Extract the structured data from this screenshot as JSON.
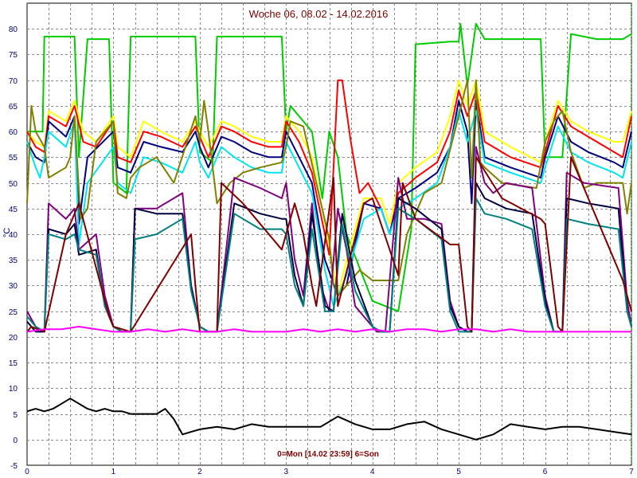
{
  "chart_data": {
    "type": "line",
    "title": "Woche 06, 08.02 - 14.02.2016",
    "xlabel": "0=Mon [14.02 23:59] 6=Son",
    "ylabel": "°C",
    "xlim": [
      0,
      7
    ],
    "ylim": [
      -5,
      85
    ],
    "x_ticks": [
      0,
      1,
      2,
      3,
      4,
      5,
      6,
      7
    ],
    "y_ticks": [
      -5,
      0,
      5,
      10,
      15,
      20,
      25,
      30,
      35,
      40,
      45,
      50,
      55,
      60,
      65,
      70,
      75,
      80
    ],
    "grid": true,
    "colors": {
      "title": "#800000",
      "axis_text": "#000080",
      "grid": "#888888",
      "axis": "#000000"
    },
    "series": [
      {
        "color": "#00cc00",
        "x": [
          0,
          0.18,
          0.2,
          0.55,
          0.6,
          0.7,
          0.95,
          1.0,
          1.15,
          1.2,
          1.95,
          2.0,
          2.15,
          2.2,
          2.95,
          3.0,
          3.05,
          3.3,
          3.42,
          3.5,
          3.6,
          3.7,
          4.0,
          4.3,
          4.45,
          4.5,
          4.9,
          5.0,
          5.02,
          5.1,
          5.2,
          5.3,
          5.6,
          5.95,
          6.0,
          6.2,
          6.3,
          6.6,
          6.9,
          7.0
        ],
        "y": [
          60,
          60,
          78.5,
          78.5,
          55,
          78,
          78,
          50,
          48,
          78.5,
          78.5,
          56,
          54,
          78.5,
          78.5,
          60,
          65,
          60,
          47,
          60,
          55,
          40,
          27,
          25,
          41,
          77,
          77.5,
          77.5,
          81,
          69,
          81,
          78,
          78,
          78,
          55,
          55,
          79,
          78,
          78,
          79
        ]
      },
      {
        "color": "#ffff00",
        "x": [
          0,
          0.1,
          0.2,
          0.25,
          0.45,
          0.55,
          0.65,
          0.8,
          1.0,
          1.05,
          1.2,
          1.35,
          1.55,
          1.8,
          1.95,
          2.0,
          2.1,
          2.25,
          2.4,
          2.6,
          2.8,
          2.95,
          3.0,
          3.15,
          3.3,
          3.5,
          3.6,
          3.7,
          3.9,
          4.1,
          4.2,
          4.3,
          4.5,
          4.75,
          4.9,
          5.0,
          5.1,
          5.2,
          5.3,
          5.6,
          5.95,
          6.0,
          6.15,
          6.3,
          6.5,
          6.8,
          6.9,
          7.0
        ],
        "y": [
          60,
          58,
          57,
          64,
          62,
          66,
          60,
          58,
          63,
          57,
          55,
          62,
          60,
          58,
          62,
          60,
          57,
          62,
          61,
          59,
          58,
          58,
          63,
          60,
          55,
          38,
          28,
          35,
          47,
          47,
          42,
          50,
          53,
          56,
          63,
          70,
          65,
          70,
          60,
          57,
          54,
          58,
          66,
          62,
          60,
          58,
          58,
          64
        ]
      },
      {
        "color": "#ff0000",
        "x": [
          0,
          0.1,
          0.2,
          0.25,
          0.45,
          0.55,
          0.65,
          0.8,
          1.0,
          1.05,
          1.2,
          1.35,
          1.55,
          1.8,
          1.95,
          2.0,
          2.1,
          2.25,
          2.4,
          2.6,
          2.8,
          2.95,
          3.0,
          3.15,
          3.3,
          3.5,
          3.6,
          3.65,
          3.75,
          3.85,
          3.95,
          4.1,
          4.2,
          4.3,
          4.5,
          4.75,
          4.9,
          5.0,
          5.1,
          5.2,
          5.3,
          5.6,
          5.95,
          6.0,
          6.15,
          6.3,
          6.5,
          6.8,
          6.9,
          7.0
        ],
        "y": [
          60,
          57,
          56,
          63,
          61,
          65,
          58,
          57,
          62,
          55,
          54,
          60,
          59,
          57,
          61,
          59,
          55,
          61,
          60,
          58,
          57,
          57,
          62,
          58,
          52,
          36,
          70,
          70,
          58,
          48,
          50,
          45,
          40,
          48,
          51,
          54,
          60,
          68,
          63,
          68,
          58,
          55,
          53,
          56,
          65,
          61,
          59,
          56,
          55,
          63
        ]
      },
      {
        "color": "#000080",
        "x": [
          0,
          0.1,
          0.2,
          0.25,
          0.45,
          0.55,
          0.6,
          0.7,
          1.0,
          1.05,
          1.2,
          1.35,
          1.55,
          1.8,
          1.95,
          2.0,
          2.1,
          2.25,
          2.4,
          2.6,
          2.8,
          2.95,
          3.0,
          3.15,
          3.3,
          3.45,
          3.6,
          3.7,
          3.9,
          4.1,
          4.2,
          4.3,
          4.5,
          4.75,
          4.9,
          5.0,
          5.1,
          5.15,
          5.2,
          5.3,
          5.6,
          5.95,
          6.0,
          6.15,
          6.3,
          6.5,
          6.8,
          6.9,
          7.0
        ],
        "y": [
          58,
          55,
          54,
          62,
          59,
          63,
          42,
          55,
          60,
          53,
          52,
          58,
          57,
          56,
          60,
          57,
          53,
          59,
          58,
          56,
          55,
          55,
          60,
          55,
          50,
          35,
          28,
          30,
          46,
          45,
          40,
          47,
          49,
          52,
          57,
          66,
          60,
          46,
          66,
          55,
          53,
          51,
          55,
          63,
          58,
          56,
          54,
          53,
          60
        ]
      },
      {
        "color": "#00e5ee",
        "x": [
          0,
          0.1,
          0.15,
          0.2,
          0.25,
          0.45,
          0.55,
          0.6,
          0.7,
          1.0,
          1.05,
          1.2,
          1.35,
          1.55,
          1.8,
          1.95,
          2.0,
          2.1,
          2.25,
          2.4,
          2.6,
          2.8,
          2.95,
          3.0,
          3.15,
          3.3,
          3.45,
          3.55,
          3.7,
          3.9,
          4.1,
          4.2,
          4.3,
          4.5,
          4.75,
          4.9,
          5.0,
          5.1,
          5.2,
          5.3,
          5.6,
          5.95,
          6.0,
          6.15,
          6.3,
          6.5,
          6.8,
          6.9,
          7.0
        ],
        "y": [
          58,
          53,
          51,
          55,
          60,
          57,
          62,
          38,
          50,
          57,
          50,
          48,
          55,
          54,
          52,
          58,
          54,
          51,
          57,
          55,
          53,
          52,
          52,
          58,
          53,
          48,
          33,
          26,
          32,
          43,
          45,
          40,
          45,
          47,
          50,
          57,
          64,
          58,
          64,
          54,
          52,
          50,
          53,
          61,
          56,
          54,
          52,
          51,
          58
        ]
      },
      {
        "color": "#808000",
        "x": [
          0,
          0.05,
          0.1,
          0.2,
          0.25,
          0.45,
          0.5,
          0.55,
          0.62,
          0.7,
          0.8,
          1.0,
          1.05,
          1.15,
          1.2,
          1.3,
          1.5,
          1.7,
          1.95,
          2.0,
          2.05,
          2.1,
          2.2,
          2.35,
          2.5,
          2.7,
          2.95,
          3.0,
          3.05,
          3.2,
          3.35,
          3.5,
          3.55,
          3.6,
          3.7,
          3.85,
          4.0,
          4.3,
          4.4,
          4.45,
          4.6,
          4.8,
          5.0,
          5.1,
          5.15,
          5.2,
          5.25,
          5.3,
          5.5,
          5.9,
          6.0,
          6.1,
          6.2,
          6.3,
          6.45,
          6.6,
          6.9,
          6.95,
          7.0
        ],
        "y": [
          46,
          65,
          60,
          57,
          51,
          53,
          55,
          63,
          43,
          45,
          58,
          62,
          48,
          47,
          51,
          53,
          55,
          50,
          63,
          58,
          66,
          60,
          46,
          50,
          52,
          53,
          54,
          57,
          62,
          61,
          50,
          39,
          30,
          28,
          30,
          33,
          31,
          31,
          40,
          42,
          48,
          50,
          63,
          70,
          51,
          70,
          54,
          53,
          50,
          49,
          58,
          62,
          64,
          56,
          49,
          50,
          50,
          44,
          50
        ]
      },
      {
        "color": "#800080",
        "x": [
          0,
          0.1,
          0.2,
          0.25,
          0.45,
          0.55,
          0.6,
          0.8,
          0.9,
          1.0,
          1.1,
          1.2,
          1.25,
          1.5,
          1.8,
          1.9,
          2.0,
          2.1,
          2.2,
          2.4,
          2.7,
          2.95,
          3.0,
          3.1,
          3.2,
          3.3,
          3.4,
          3.5,
          3.6,
          3.7,
          3.8,
          4.0,
          4.05,
          4.15,
          4.3,
          4.4,
          4.6,
          4.8,
          4.9,
          5.0,
          5.1,
          5.15,
          5.2,
          5.3,
          5.4,
          5.55,
          5.85,
          6.0,
          6.1,
          6.2,
          6.25,
          6.45,
          6.85,
          6.95,
          7.0
        ],
        "y": [
          25,
          22,
          21,
          46,
          43,
          45,
          37,
          40,
          28,
          22,
          21,
          21,
          45,
          45,
          48,
          30,
          22,
          21,
          21,
          51,
          49,
          47,
          50,
          35,
          28,
          46,
          30,
          25,
          45,
          37,
          26,
          22,
          21,
          21,
          51,
          43,
          43,
          42,
          27,
          22,
          21,
          21,
          57,
          50,
          48,
          50,
          49,
          28,
          21,
          21,
          52,
          50,
          49,
          27,
          22
        ]
      },
      {
        "color": "#000040",
        "x": [
          0,
          0.1,
          0.2,
          0.25,
          0.45,
          0.55,
          0.6,
          0.8,
          0.9,
          1.0,
          1.1,
          1.2,
          1.25,
          1.5,
          1.8,
          1.9,
          2.0,
          2.1,
          2.2,
          2.4,
          2.7,
          2.95,
          3.0,
          3.1,
          3.2,
          3.3,
          3.45,
          3.55,
          3.65,
          3.8,
          4.0,
          4.1,
          4.2,
          4.3,
          4.5,
          4.8,
          4.9,
          5.0,
          5.1,
          5.15,
          5.2,
          5.3,
          5.55,
          5.85,
          6.0,
          6.1,
          6.2,
          6.25,
          6.5,
          6.85,
          6.95,
          7.0
        ],
        "y": [
          23,
          21,
          21,
          41,
          40,
          42,
          36,
          37,
          26,
          22,
          21,
          21,
          45,
          44,
          44,
          30,
          22,
          21,
          21,
          46,
          44,
          43,
          43,
          32,
          26,
          44,
          26,
          25,
          44,
          31,
          22,
          21,
          21,
          47,
          45,
          41,
          26,
          22,
          21,
          21,
          50,
          47,
          45,
          44,
          27,
          21,
          21,
          47,
          46,
          45,
          25,
          22
        ]
      },
      {
        "color": "#008080",
        "x": [
          0,
          0.1,
          0.2,
          0.25,
          0.45,
          0.55,
          0.6,
          0.8,
          0.9,
          1.0,
          1.1,
          1.2,
          1.25,
          1.5,
          1.8,
          1.9,
          2.0,
          2.1,
          2.2,
          2.4,
          2.7,
          2.95,
          3.0,
          3.1,
          3.2,
          3.3,
          3.45,
          3.55,
          3.65,
          3.8,
          4.0,
          4.1,
          4.2,
          4.3,
          4.5,
          4.8,
          4.9,
          5.0,
          5.1,
          5.15,
          5.2,
          5.3,
          5.55,
          5.85,
          6.0,
          6.1,
          6.2,
          6.25,
          6.5,
          6.85,
          6.95,
          7.0
        ],
        "y": [
          24,
          22,
          21,
          40,
          39,
          40,
          37,
          36,
          26,
          22,
          21,
          21,
          39,
          40,
          43,
          29,
          22,
          21,
          21,
          44,
          41,
          41,
          40,
          30,
          26,
          41,
          25,
          25,
          42,
          29,
          22,
          21,
          21,
          45,
          43,
          39,
          25,
          21,
          21,
          21,
          47,
          44,
          43,
          41,
          26,
          21,
          21,
          43,
          42,
          41,
          25,
          22
        ]
      },
      {
        "color": "#800000",
        "x": [
          0,
          0.05,
          0.2,
          0.45,
          0.6,
          0.95,
          1.0,
          1.2,
          1.9,
          1.95,
          2.0,
          2.2,
          2.25,
          2.5,
          2.95,
          3.1,
          3.2,
          3.3,
          3.35,
          3.55,
          3.6,
          3.9,
          4.0,
          4.3,
          4.35,
          4.5,
          4.9,
          5.0,
          5.1,
          5.15,
          5.2,
          5.5,
          5.95,
          6.0,
          6.15,
          6.2,
          6.3,
          6.5,
          6.9,
          7.0
        ],
        "y": [
          21,
          22,
          21,
          40,
          46,
          24,
          22,
          21,
          40,
          30,
          21,
          21,
          50,
          46,
          37,
          46,
          40,
          30,
          26,
          51,
          26,
          46,
          47,
          32,
          50,
          43,
          38,
          38,
          22,
          21,
          55,
          47,
          43,
          42,
          22,
          21,
          55,
          47,
          31,
          25
        ]
      },
      {
        "color": "#ff00ff",
        "x": [
          0,
          0.2,
          0.4,
          0.6,
          0.8,
          1.0,
          1.2,
          1.4,
          1.6,
          1.8,
          2.0,
          2.2,
          2.4,
          2.6,
          2.8,
          3.0,
          3.2,
          3.4,
          3.6,
          3.8,
          4.0,
          4.2,
          4.4,
          4.6,
          4.8,
          5.0,
          5.2,
          5.4,
          5.6,
          5.8,
          6.0,
          6.2,
          6.4,
          6.6,
          6.8,
          7.0
        ],
        "y": [
          21,
          21.5,
          21.5,
          22,
          21.5,
          21,
          21,
          21.5,
          21,
          21.5,
          21,
          21,
          21.5,
          21,
          21,
          21,
          21.5,
          21,
          21.5,
          21,
          21.5,
          21,
          21.5,
          21.5,
          21,
          21.5,
          21.5,
          21,
          21.5,
          21,
          21,
          21,
          21,
          21,
          21,
          21
        ]
      },
      {
        "color": "#000000",
        "x": [
          0,
          0.1,
          0.2,
          0.3,
          0.4,
          0.5,
          0.6,
          0.7,
          0.8,
          0.9,
          1.0,
          1.1,
          1.2,
          1.3,
          1.4,
          1.5,
          1.6,
          1.7,
          1.8,
          1.9,
          2.0,
          2.2,
          2.4,
          2.6,
          2.8,
          3.0,
          3.2,
          3.4,
          3.6,
          3.8,
          4.0,
          4.2,
          4.4,
          4.6,
          4.8,
          5.0,
          5.2,
          5.4,
          5.6,
          5.8,
          6.0,
          6.2,
          6.4,
          6.6,
          6.8,
          7.0
        ],
        "y": [
          5.5,
          6,
          5.5,
          6,
          7,
          8,
          7,
          6,
          5.5,
          6,
          5.5,
          5.5,
          5,
          5,
          5,
          5,
          6,
          4,
          1,
          1.5,
          2,
          2.5,
          2,
          3,
          2.5,
          2.5,
          2.5,
          2.5,
          4.5,
          3,
          2,
          2,
          3,
          3.5,
          2,
          1,
          0,
          1,
          3,
          2.5,
          2,
          2.5,
          2.5,
          2,
          1.5,
          1
        ]
      }
    ]
  }
}
